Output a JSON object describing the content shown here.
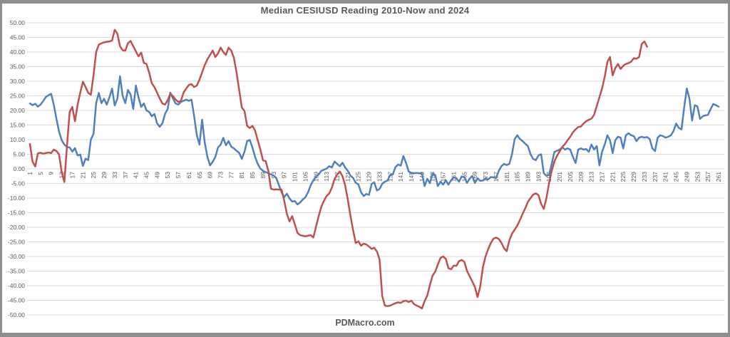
{
  "header": {
    "title": "Median CESIUSD Reading 2010-Now  and 2024"
  },
  "footer": {
    "text": "PDMacro.com"
  },
  "colors": {
    "series_blue": "#4f81bd",
    "series_red": "#c0504d",
    "gridline": "#d9d9d9",
    "axis_text": "#595959",
    "title_text": "#595959",
    "window_border": "#8f8f8f",
    "background": "#ffffff"
  },
  "chart_data": {
    "type": "line",
    "title": "Median CESIUSD Reading 2010-Now  and 2024",
    "xlabel": "",
    "ylabel": "",
    "ylim": [
      -50,
      50
    ],
    "xlim": [
      1,
      262
    ],
    "grid": true,
    "legend": "none",
    "x_start": 1,
    "x_step": 1,
    "y_tick_labels": [
      "50.00",
      "45.00",
      "40.00",
      "35.00",
      "30.00",
      "25.00",
      "20.00",
      "15.00",
      "10.00",
      "5.00",
      "0.00",
      "-5.00",
      "-10.00",
      "-15.00",
      "-20.00",
      "-25.00",
      "-30.00",
      "-35.00",
      "-40.00",
      "-45.00",
      "-50.00"
    ],
    "x_tick_labels": [
      1,
      5,
      9,
      13,
      17,
      21,
      25,
      29,
      33,
      37,
      41,
      45,
      49,
      53,
      57,
      61,
      65,
      69,
      73,
      77,
      81,
      85,
      89,
      93,
      97,
      101,
      105,
      109,
      113,
      117,
      121,
      125,
      129,
      133,
      137,
      141,
      145,
      149,
      153,
      157,
      161,
      165,
      169,
      173,
      177,
      181,
      185,
      189,
      193,
      197,
      201,
      205,
      209,
      213,
      217,
      221,
      225,
      229,
      233,
      237,
      241,
      245,
      249,
      253,
      257,
      261
    ],
    "series": [
      {
        "name": "blue",
        "color": "#4f81bd",
        "values": [
          22.4,
          21.8,
          22.3,
          21.3,
          22.0,
          23.2,
          24.6,
          25.2,
          25.7,
          22.0,
          17.1,
          12.7,
          9.8,
          8.3,
          7.5,
          7.3,
          5.9,
          7.1,
          4.6,
          4.9,
          1.0,
          3.5,
          3.0,
          10.0,
          12.0,
          22.5,
          26.0,
          22.5,
          24.0,
          22.0,
          24.5,
          27.5,
          21.7,
          24.0,
          31.7,
          25.0,
          22.5,
          27.0,
          25.5,
          20.5,
          28.5,
          24.4,
          21.2,
          22.4,
          20.0,
          19.5,
          18.0,
          18.8,
          15.6,
          14.4,
          15.6,
          18.8,
          20.5,
          26.1,
          24.1,
          22.4,
          22.0,
          22.9,
          23.3,
          23.7,
          23.3,
          23.7,
          18.0,
          11.5,
          8.3,
          16.8,
          9.0,
          4.1,
          1.2,
          2.4,
          4.1,
          7.3,
          8.3,
          10.6,
          8.1,
          9.5,
          7.6,
          7.0,
          6.2,
          5.5,
          3.4,
          5.9,
          9.5,
          9.9,
          7.3,
          4.1,
          1.7,
          0.1,
          -0.7,
          -1.1,
          -1.5,
          -1.9,
          -2.3,
          -3.1,
          -5.6,
          -8.0,
          -9.7,
          -8.5,
          -10.1,
          -11.2,
          -11.0,
          -12.2,
          -11.5,
          -10.5,
          -9.7,
          -8.0,
          -5.6,
          -3.9,
          -2.7,
          -1.9,
          -0.7,
          -0.3,
          0.1,
          0.9,
          0.5,
          2.5,
          1.7,
          0.9,
          2.1,
          0.5,
          -0.7,
          -2.3,
          -3.1,
          -4.8,
          -5.3,
          -8.0,
          -9.3,
          -8.6,
          -8.9,
          -5.2,
          -4.6,
          -7.4,
          -6.9,
          -5.1,
          -4.4,
          -4.0,
          -2.1,
          -1.9,
          0.6,
          1.5,
          1.1,
          4.4,
          2.0,
          -0.9,
          -1.4,
          -1.5,
          -1.4,
          -1.5,
          -1.4,
          -5.9,
          -3.4,
          -4.9,
          -1.6,
          -2.1,
          -5.9,
          -4.4,
          -5.4,
          -3.9,
          -5.4,
          -3.9,
          -2.9,
          -3.2,
          -4.4,
          -2.6,
          -2.8,
          -4.8,
          -3.4,
          -2.4,
          -4.8,
          -3.2,
          -4.1,
          -4.0,
          -3.2,
          -3.6,
          -2.8,
          -2.9,
          -3.2,
          -0.7,
          0.9,
          1.7,
          1.3,
          1.7,
          5.0,
          10.2,
          11.5,
          10.2,
          9.5,
          8.6,
          7.8,
          5.0,
          3.4,
          3.0,
          4.6,
          5.0,
          -1.5,
          -2.4,
          -2.0,
          1.7,
          5.8,
          6.2,
          6.6,
          7.4,
          6.6,
          7.0,
          6.6,
          4.1,
          2.0,
          6.6,
          7.0,
          6.6,
          6.8,
          5.8,
          8.3,
          6.6,
          7.8,
          1.2,
          5.8,
          8.3,
          11.5,
          9.8,
          5.4,
          9.8,
          11.0,
          10.7,
          7.0,
          11.5,
          12.2,
          11.5,
          11.2,
          9.5,
          10.7,
          11.0,
          10.7,
          10.9,
          10.2,
          7.0,
          6.1,
          10.7,
          11.5,
          11.2,
          10.7,
          11.0,
          11.5,
          13.0,
          15.5,
          14.0,
          13.5,
          21.0,
          27.5,
          24.0,
          16.5,
          21.8,
          21.4,
          17.1,
          18.0,
          18.3,
          18.5,
          20.5,
          22.2,
          21.8,
          21.3
        ]
      },
      {
        "name": "red",
        "color": "#c0504d",
        "values": [
          8.5,
          2.4,
          0.8,
          5.3,
          5.5,
          5.2,
          5.4,
          5.6,
          5.4,
          6.6,
          6.1,
          4.9,
          -1.2,
          -4.5,
          8.0,
          19.5,
          21.2,
          16.3,
          22.0,
          26.1,
          29.8,
          28.0,
          26.0,
          25.4,
          32.0,
          40.0,
          42.5,
          43.0,
          43.3,
          43.5,
          43.6,
          43.9,
          47.6,
          46.3,
          42.0,
          40.6,
          40.5,
          43.0,
          43.8,
          42.0,
          40.2,
          38.5,
          39.8,
          36.3,
          35.9,
          33.0,
          29.3,
          28.0,
          26.1,
          24.1,
          22.4,
          22.0,
          23.5,
          25.7,
          24.9,
          23.7,
          22.9,
          23.3,
          26.1,
          27.5,
          28.7,
          29.0,
          28.0,
          28.5,
          30.5,
          33.0,
          35.5,
          37.5,
          39.0,
          40.5,
          38.3,
          39.5,
          41.5,
          40.0,
          39.0,
          41.5,
          40.5,
          38.0,
          33.0,
          27.0,
          21.0,
          19.8,
          14.7,
          14.0,
          14.7,
          13.1,
          9.8,
          6.6,
          2.9,
          2.7,
          -0.7,
          -6.8,
          -7.1,
          -7.0,
          -7.1,
          -7.1,
          -10.9,
          -15.4,
          -18.0,
          -16.2,
          -19.0,
          -21.9,
          -22.7,
          -22.9,
          -23.1,
          -22.9,
          -22.7,
          -23.5,
          -19.8,
          -16.2,
          -13.0,
          -10.9,
          -9.3,
          -8.4,
          -6.4,
          -3.5,
          -1.9,
          -0.9,
          -2.5,
          -5.6,
          -10.5,
          -16.0,
          -21.0,
          -25.4,
          -24.8,
          -26.3,
          -25.6,
          -25.9,
          -26.6,
          -27.4,
          -27.0,
          -28.3,
          -31.0,
          -43.5,
          -46.8,
          -47.0,
          -46.8,
          -46.4,
          -46.0,
          -45.7,
          -45.9,
          -45.3,
          -45.1,
          -45.6,
          -45.1,
          -46.3,
          -46.8,
          -47.2,
          -47.8,
          -45.3,
          -43.4,
          -39.8,
          -36.6,
          -35.2,
          -32.8,
          -30.5,
          -30.0,
          -30.8,
          -34.0,
          -34.4,
          -33.1,
          -33.2,
          -31.6,
          -31.2,
          -31.8,
          -34.9,
          -36.8,
          -38.5,
          -40.5,
          -43.9,
          -40.3,
          -33.8,
          -30.0,
          -27.5,
          -25.4,
          -23.9,
          -23.5,
          -24.0,
          -25.3,
          -27.2,
          -28.2,
          -24.5,
          -22.2,
          -20.8,
          -19.4,
          -17.5,
          -15.4,
          -13.5,
          -11.3,
          -10.0,
          -8.8,
          -8.4,
          -9.0,
          -12.0,
          -13.7,
          -10.0,
          -4.8,
          -0.7,
          2.5,
          4.5,
          6.0,
          7.5,
          8.5,
          9.8,
          11.0,
          12.5,
          13.5,
          14.3,
          14.5,
          15.5,
          16.3,
          16.8,
          17.2,
          18.5,
          21.5,
          24.5,
          27.5,
          31.5,
          36.5,
          38.3,
          32.0,
          34.5,
          35.9,
          34.2,
          35.3,
          35.9,
          36.2,
          36.7,
          37.9,
          37.7,
          38.3,
          42.8,
          43.6,
          41.8
        ]
      }
    ]
  }
}
